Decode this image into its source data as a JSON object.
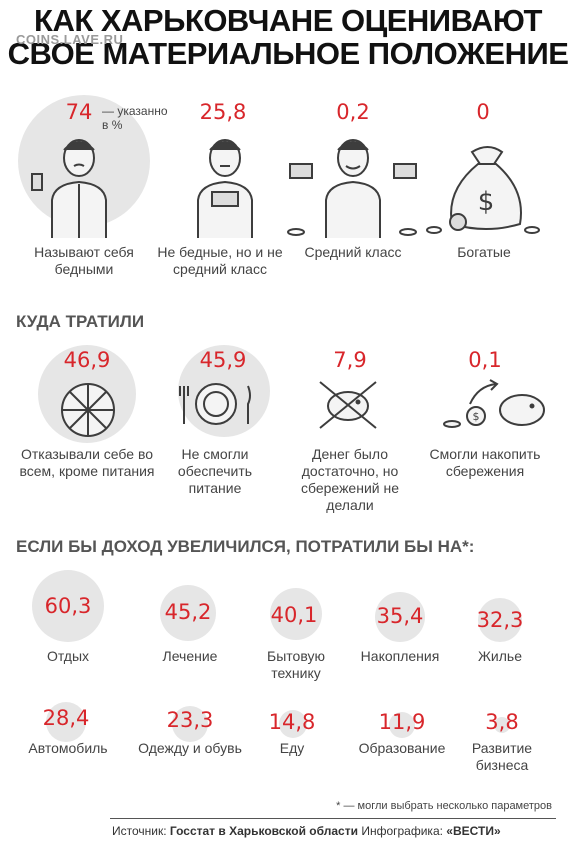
{
  "title": {
    "line1": "КАК ХАРЬКОВЧАНЕ ОЦЕНИВАЮТ",
    "line2": "СВОЕ МАТЕРИАЛЬНОЕ ПОЛОЖЕНИЕ"
  },
  "watermark": "COINS.LAVE.RU",
  "unit_note": "— указанно в %",
  "status": {
    "items": [
      {
        "value": "74",
        "label": "Называют себя бедными"
      },
      {
        "value": "25,8",
        "label": "Не бедные, но и не средний класс"
      },
      {
        "value": "0,2",
        "label": "Средний класс"
      },
      {
        "value": "0",
        "label": "Богатые"
      }
    ]
  },
  "spent": {
    "heading": "КУДА ТРАТИЛИ",
    "items": [
      {
        "value": "46,9",
        "label": "Отказывали себе во всем, кроме питания"
      },
      {
        "value": "45,9",
        "label": "Не смогли обеспечить питание"
      },
      {
        "value": "7,9",
        "label": "Денег было достаточно, но сбережений не делали"
      },
      {
        "value": "0,1",
        "label": "Смогли накопить сбережения"
      }
    ]
  },
  "would_spend": {
    "heading": "ЕСЛИ БЫ ДОХОД УВЕЛИЧИЛСЯ, ПОТРАТИЛИ БЫ НА*:",
    "items": [
      {
        "value": "60,3",
        "label": "Отдых"
      },
      {
        "value": "45,2",
        "label": "Лечение"
      },
      {
        "value": "40,1",
        "label": "Бытовую технику"
      },
      {
        "value": "35,4",
        "label": "Накопления"
      },
      {
        "value": "32,3",
        "label": "Жилье"
      },
      {
        "value": "28,4",
        "label": "Автомобиль"
      },
      {
        "value": "23,3",
        "label": "Одежду и обувь"
      },
      {
        "value": "14,8",
        "label": "Еду"
      },
      {
        "value": "11,9",
        "label": "Образование"
      },
      {
        "value": "3,8",
        "label": "Развитие бизнеса"
      }
    ]
  },
  "footnote": "* — могли выбрать несколько параметров",
  "source": {
    "prefix": "Источник:",
    "name": "Госстат в Харьковской области",
    "infographic_label": "Инфографика:",
    "brand": "«ВЕСТИ»"
  },
  "chart_data": [
    {
      "type": "bar",
      "categories": [
        "Называют себя бедными",
        "Не бедные, но и не средний класс",
        "Средний класс",
        "Богатые"
      ],
      "values": [
        74,
        25.8,
        0.2,
        0
      ]
    },
    {
      "type": "bar",
      "categories": [
        "Отказывали себе во всем, кроме питания",
        "Не смогли обеспечить питание",
        "Денег было достаточно, но сбережений не делали",
        "Смогли накопить сбережения"
      ],
      "values": [
        46.9,
        45.9,
        7.9,
        0.1
      ]
    },
    {
      "type": "bar",
      "categories": [
        "Отдых",
        "Лечение",
        "Бытовую технику",
        "Накопления",
        "Жилье",
        "Автомобиль",
        "Одежду и обувь",
        "Еду",
        "Образование",
        "Развитие бизнеса"
      ],
      "values": [
        60.3,
        45.2,
        40.1,
        35.4,
        32.3,
        28.4,
        23.3,
        14.8,
        11.9,
        3.8
      ]
    }
  ]
}
